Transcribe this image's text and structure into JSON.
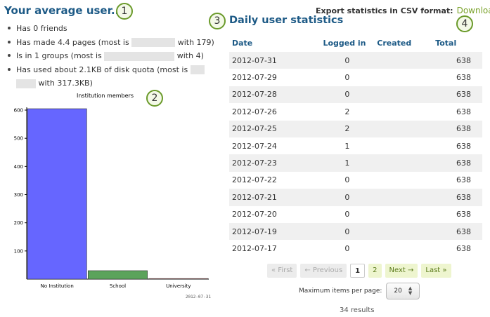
{
  "left": {
    "title": "Your average user...",
    "stats": {
      "friends": "Has 0 friends",
      "pages_prefix": "Has made 4.4 pages (most is",
      "pages_suffix": "with 179)",
      "groups_prefix": "Is in 1 groups (most is",
      "groups_suffix": "with 4)",
      "quota_prefix": "Has used about 2.1KB of disk quota (most is",
      "quota_suffix": "with 317.3KB)"
    }
  },
  "badges": [
    "1",
    "2",
    "3",
    "4"
  ],
  "chart_data": {
    "type": "bar",
    "title": "Institution members",
    "categories": [
      "No Institution",
      "School",
      "University"
    ],
    "values": [
      606,
      30,
      2
    ],
    "ylim": [
      0,
      600
    ],
    "yticks": [
      "100",
      "200",
      "300",
      "400",
      "500",
      "600"
    ],
    "bar_colors": [
      "#6666ff",
      "#5ba35b",
      "#ff5a5a"
    ],
    "grid": false,
    "footer": "2012-07-31"
  },
  "right": {
    "title": "Daily user statistics",
    "export_label": "Export statistics in CSV format:",
    "download_label": "Download",
    "columns": [
      "Date",
      "Logged in",
      "Created",
      "Total"
    ],
    "rows": [
      [
        "2012-07-31",
        "0",
        "",
        "638"
      ],
      [
        "2012-07-29",
        "0",
        "",
        "638"
      ],
      [
        "2012-07-28",
        "0",
        "",
        "638"
      ],
      [
        "2012-07-26",
        "2",
        "",
        "638"
      ],
      [
        "2012-07-25",
        "2",
        "",
        "638"
      ],
      [
        "2012-07-24",
        "1",
        "",
        "638"
      ],
      [
        "2012-07-23",
        "1",
        "",
        "638"
      ],
      [
        "2012-07-22",
        "0",
        "",
        "638"
      ],
      [
        "2012-07-21",
        "0",
        "",
        "638"
      ],
      [
        "2012-07-20",
        "0",
        "",
        "638"
      ],
      [
        "2012-07-19",
        "0",
        "",
        "638"
      ],
      [
        "2012-07-17",
        "0",
        "",
        "638"
      ]
    ],
    "pagination": {
      "first": "« First",
      "previous": "← Previous",
      "page1": "1",
      "page2": "2",
      "next": "Next →",
      "last": "Last »"
    },
    "items_label": "Maximum items per page:",
    "items_value": "20",
    "results": "34 results"
  }
}
